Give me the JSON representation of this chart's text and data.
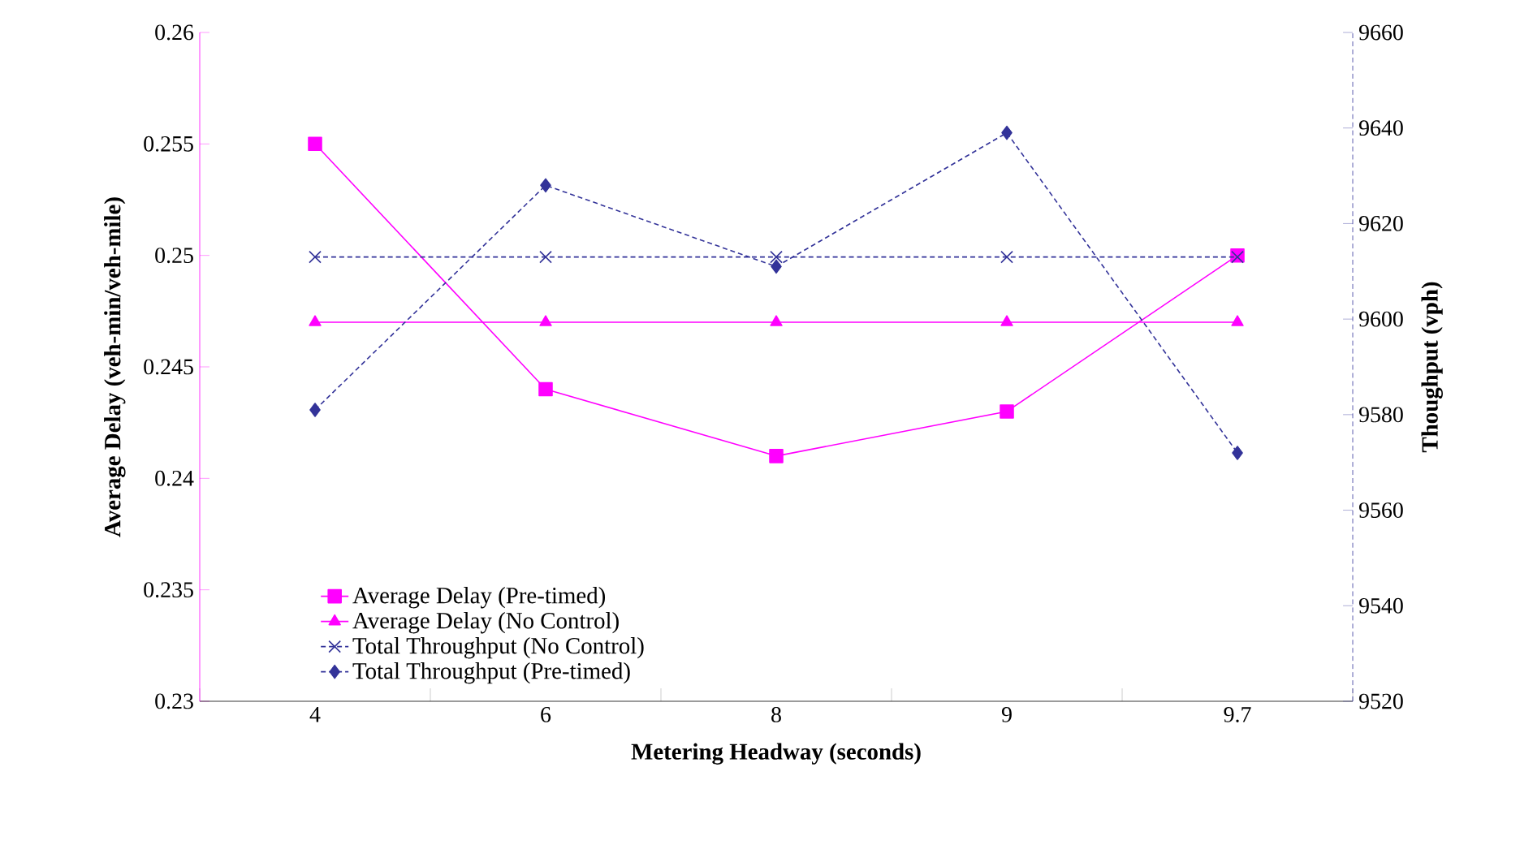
{
  "chart_data": {
    "type": "line",
    "categories": [
      "4",
      "6",
      "8",
      "9",
      "9.7"
    ],
    "xlabel": "Metering Headway (seconds)",
    "ylabel": "Average Delay (veh-min/veh-mile)",
    "y2label": "Thoughput (vph)",
    "ylim": [
      0.23,
      0.26
    ],
    "yticks": [
      0.23,
      0.235,
      0.24,
      0.245,
      0.25,
      0.255,
      0.26
    ],
    "y2lim": [
      9520,
      9660
    ],
    "y2ticks": [
      9520,
      9540,
      9560,
      9580,
      9600,
      9620,
      9640,
      9660
    ],
    "legend": "bottom left",
    "series": [
      {
        "name": "Average Delay (Pre-timed)",
        "color": "#ff00ff",
        "axis": "y",
        "marker": "square",
        "line_style": "solid",
        "values": [
          0.255,
          0.244,
          0.241,
          0.243,
          0.25
        ]
      },
      {
        "name": "Average Delay (No Control)",
        "color": "#ff00ff",
        "axis": "y",
        "marker": "triangle",
        "line_style": "solid",
        "values": [
          0.247,
          0.247,
          0.247,
          0.247,
          0.247
        ]
      },
      {
        "name": "Total Throughput (No Control)",
        "color": "#333399",
        "axis": "y2",
        "marker": "cross",
        "line_style": "dashed",
        "values": [
          9613,
          9613,
          9613,
          9613,
          9613
        ]
      },
      {
        "name": "Total Throughput (Pre-timed)",
        "color": "#333399",
        "axis": "y2",
        "marker": "diamond",
        "line_style": "dashed",
        "values": [
          9581,
          9628,
          9611,
          9639,
          9572
        ]
      }
    ]
  }
}
